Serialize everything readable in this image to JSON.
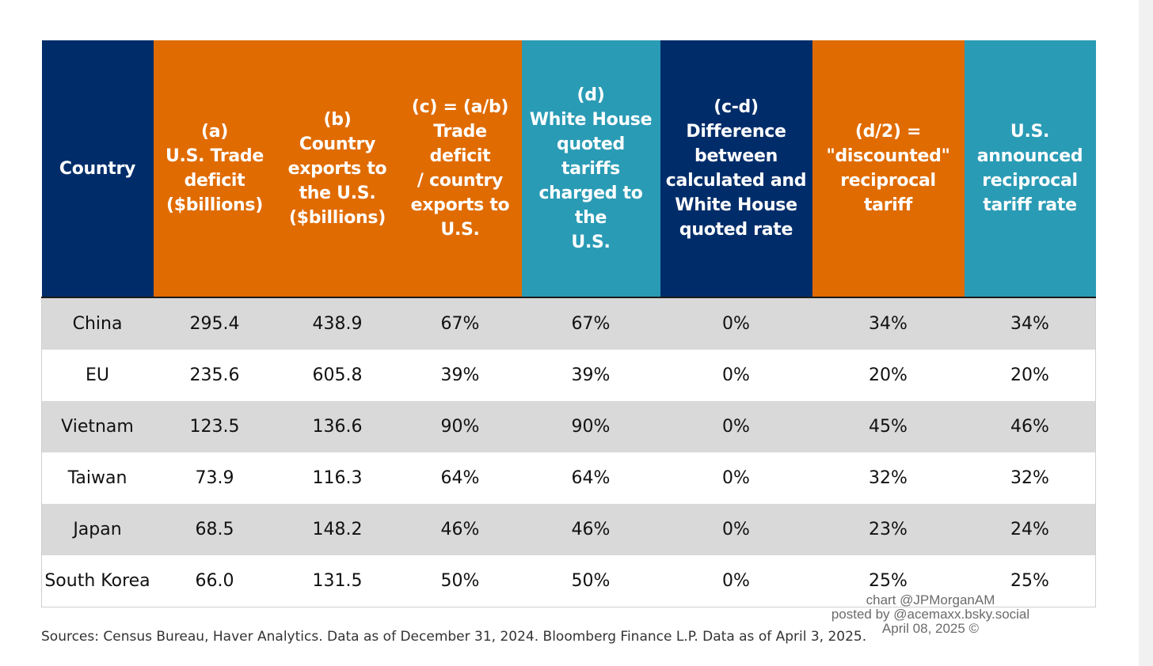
{
  "chart_data": {
    "type": "table",
    "columns": [
      {
        "label": "Country",
        "color": "#002d6a"
      },
      {
        "label": "(a)\nU.S. Trade\ndeficit\n($billions)",
        "color": "#e06b00"
      },
      {
        "label": "(b)\nCountry\nexports to\nthe U.S.\n($billions)",
        "color": "#e06b00"
      },
      {
        "label": "(c) = (a/b)\nTrade deficit\n/ country\nexports to\nU.S.",
        "color": "#e06b00"
      },
      {
        "label": "(d)\nWhite House\nquoted tariffs\ncharged to the\nU.S.",
        "color": "#2a9bb5"
      },
      {
        "label": "(c-d)\nDifference\nbetween\ncalculated and\nWhite House\nquoted rate",
        "color": "#002d6a"
      },
      {
        "label": "(d/2) =\n\"discounted\"\nreciprocal tariff",
        "color": "#e06b00"
      },
      {
        "label": "U.S.\nannounced\nreciprocal\ntariff rate",
        "color": "#2a9bb5"
      }
    ],
    "rows": [
      [
        "China",
        "295.4",
        "438.9",
        "67%",
        "67%",
        "0%",
        "34%",
        "34%"
      ],
      [
        "EU",
        "235.6",
        "605.8",
        "39%",
        "39%",
        "0%",
        "20%",
        "20%"
      ],
      [
        "Vietnam",
        "123.5",
        "136.6",
        "90%",
        "90%",
        "0%",
        "45%",
        "46%"
      ],
      [
        "Taiwan",
        "73.9",
        "116.3",
        "64%",
        "64%",
        "0%",
        "32%",
        "32%"
      ],
      [
        "Japan",
        "68.5",
        "148.2",
        "46%",
        "46%",
        "0%",
        "23%",
        "24%"
      ],
      [
        "South Korea",
        "66.0",
        "131.5",
        "50%",
        "50%",
        "0%",
        "25%",
        "25%"
      ]
    ],
    "row_colors": [
      "#d9d9d9",
      "#ffffff"
    ]
  },
  "watermark": {
    "line1": "chart @JPMorganAM",
    "line2": "posted by @acemaxx.bsky.social",
    "line3": "April 08, 2025 ©"
  },
  "sources": "Sources: Census Bureau, Haver Analytics. Data as of December 31, 2024. Bloomberg Finance L.P. Data as of April 3, 2025."
}
